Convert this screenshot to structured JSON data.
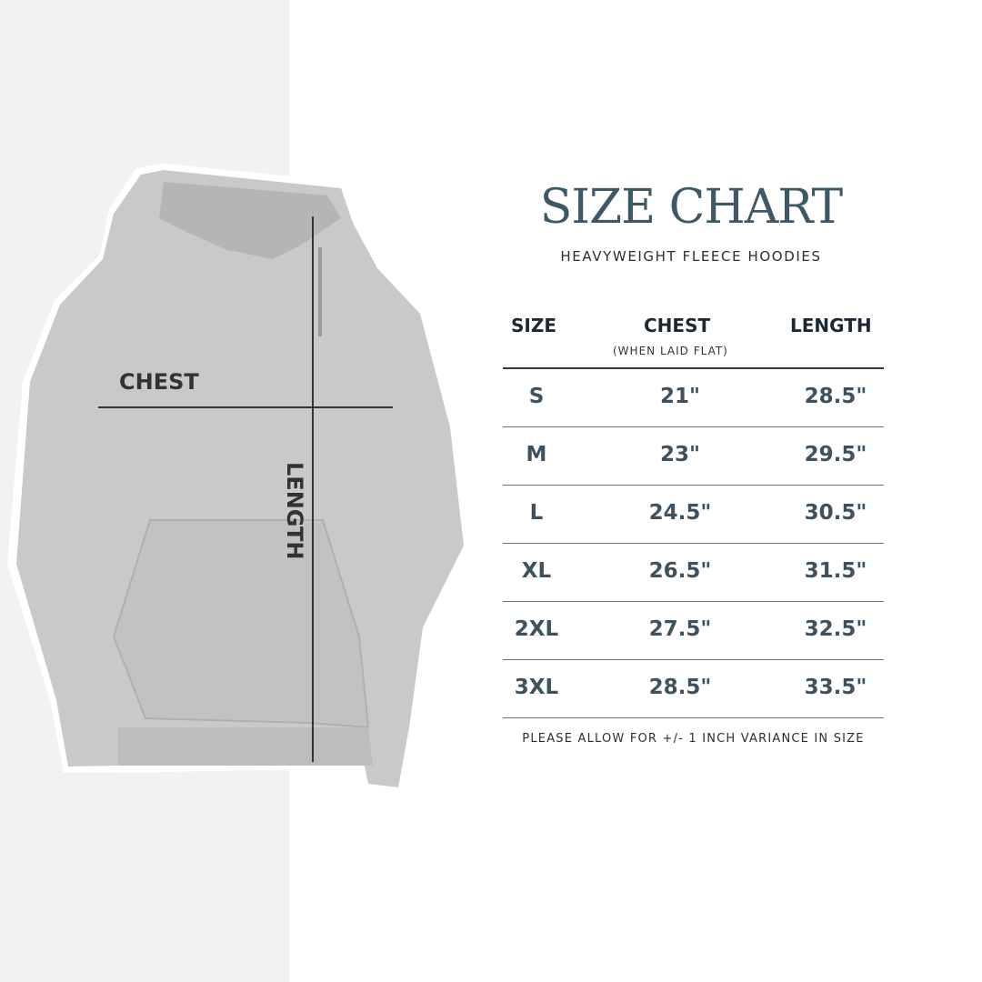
{
  "header": {
    "title": "SIZE CHART",
    "subtitle": "HEAVYWEIGHT FLEECE HOODIES"
  },
  "image_labels": {
    "chest": "CHEST",
    "length": "LENGTH"
  },
  "table": {
    "columns": [
      {
        "label": "SIZE"
      },
      {
        "label": "CHEST",
        "sublabel": "(WHEN LAID FLAT)"
      },
      {
        "label": "LENGTH"
      }
    ],
    "rows": [
      [
        "S",
        "21\"",
        "28.5\""
      ],
      [
        "M",
        "23\"",
        "29.5\""
      ],
      [
        "L",
        "24.5\"",
        "30.5\""
      ],
      [
        "XL",
        "26.5\"",
        "31.5\""
      ],
      [
        "2XL",
        "27.5\"",
        "32.5\""
      ],
      [
        "3XL",
        "28.5\"",
        "33.5\""
      ]
    ]
  },
  "footer": {
    "note": "PLEASE ALLOW FOR +/- 1 INCH VARIANCE IN SIZE"
  },
  "colors": {
    "title": "#3e5966",
    "header_text": "#1b2836",
    "value_text": "#3d525e",
    "hoodie": "#c9c9c9",
    "left_panel": "#f2f2f2"
  }
}
